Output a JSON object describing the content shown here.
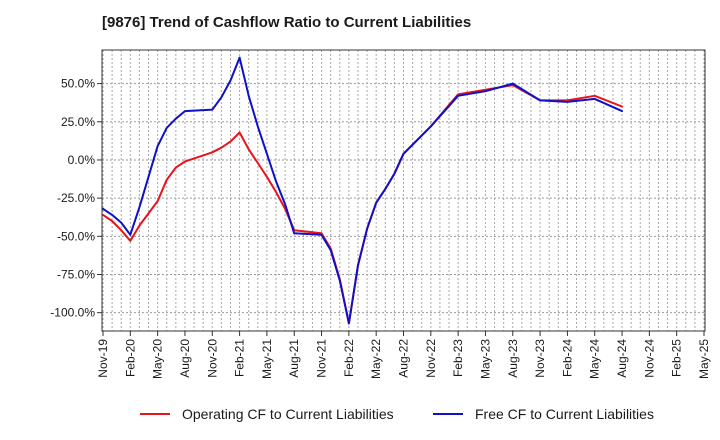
{
  "chart_data": {
    "type": "line",
    "title": "[9876]  Trend of Cashflow Ratio to Current Liabilities",
    "xlabel": "",
    "ylabel": "",
    "ylim": [
      -112,
      72
    ],
    "yticks": [
      50,
      25,
      0,
      -25,
      -50,
      -75,
      -100
    ],
    "ytick_labels": [
      "50.0%",
      "25.0%",
      "0.0%",
      "-25.0%",
      "-50.0%",
      "-75.0%",
      "-100.0%"
    ],
    "xticks": [
      "2019-11",
      "2020-02",
      "2020-05",
      "2020-08",
      "2020-11",
      "2021-02",
      "2021-05",
      "2021-08",
      "2021-11",
      "2022-02",
      "2022-05",
      "2022-08",
      "2022-11",
      "2023-02",
      "2023-05",
      "2023-08",
      "2023-11",
      "2024-02",
      "2024-05",
      "2024-08",
      "2024-11",
      "2025-02",
      "2025-05"
    ],
    "xtick_labels": [
      "Nov-19",
      "Feb-20",
      "May-20",
      "Aug-20",
      "Nov-20",
      "Feb-21",
      "May-21",
      "Aug-21",
      "Nov-21",
      "Feb-22",
      "May-22",
      "Aug-22",
      "Nov-22",
      "Feb-23",
      "May-23",
      "Aug-23",
      "Nov-23",
      "Feb-24",
      "May-24",
      "Aug-24",
      "Nov-24",
      "Feb-25",
      "May-25"
    ],
    "grid": true,
    "legend_position": "bottom",
    "series": [
      {
        "name": "Operating CF to Current Liabilities",
        "color": "#e8141b",
        "points": [
          [
            "2019-11",
            -36
          ],
          [
            "2019-12",
            -40
          ],
          [
            "2020-01",
            -46
          ],
          [
            "2020-02",
            -53
          ],
          [
            "2020-03",
            -43
          ],
          [
            "2020-04",
            -35
          ],
          [
            "2020-05",
            -27
          ],
          [
            "2020-06",
            -13
          ],
          [
            "2020-07",
            -5
          ],
          [
            "2020-08",
            -1
          ],
          [
            "2020-09",
            1
          ],
          [
            "2020-10",
            3
          ],
          [
            "2020-11",
            5
          ],
          [
            "2020-12",
            8
          ],
          [
            "2021-01",
            12
          ],
          [
            "2021-02",
            18
          ],
          [
            "2021-03",
            7
          ],
          [
            "2021-04",
            -2
          ],
          [
            "2021-05",
            -11
          ],
          [
            "2021-06",
            -21
          ],
          [
            "2021-07",
            -32
          ],
          [
            "2021-08",
            -46
          ],
          [
            "2021-11",
            -48
          ],
          [
            "2021-12",
            -58
          ],
          [
            "2022-01",
            -78
          ],
          [
            "2022-02",
            -107
          ],
          [
            "2022-03",
            -69
          ],
          [
            "2022-04",
            -45
          ],
          [
            "2022-05",
            -28
          ],
          [
            "2022-06",
            -19
          ],
          [
            "2022-07",
            -9
          ],
          [
            "2022-08",
            4
          ],
          [
            "2022-11",
            22
          ],
          [
            "2023-02",
            43
          ],
          [
            "2023-05",
            46
          ],
          [
            "2023-08",
            49
          ],
          [
            "2023-11",
            39
          ],
          [
            "2024-02",
            39
          ],
          [
            "2024-05",
            42
          ],
          [
            "2024-08",
            35
          ]
        ]
      },
      {
        "name": "Free CF to Current Liabilities",
        "color": "#1010c8",
        "points": [
          [
            "2019-11",
            -32
          ],
          [
            "2019-12",
            -36
          ],
          [
            "2020-01",
            -41
          ],
          [
            "2020-02",
            -49
          ],
          [
            "2020-03",
            -31
          ],
          [
            "2020-04",
            -11
          ],
          [
            "2020-05",
            9
          ],
          [
            "2020-06",
            21
          ],
          [
            "2020-07",
            27
          ],
          [
            "2020-08",
            32
          ],
          [
            "2020-11",
            33
          ],
          [
            "2020-12",
            41
          ],
          [
            "2021-01",
            52
          ],
          [
            "2021-02",
            67
          ],
          [
            "2021-03",
            42
          ],
          [
            "2021-04",
            22
          ],
          [
            "2021-05",
            4
          ],
          [
            "2021-06",
            -14
          ],
          [
            "2021-07",
            -29
          ],
          [
            "2021-08",
            -48
          ],
          [
            "2021-11",
            -49
          ],
          [
            "2021-12",
            -59
          ],
          [
            "2022-01",
            -79
          ],
          [
            "2022-02",
            -107
          ],
          [
            "2022-03",
            -69
          ],
          [
            "2022-04",
            -45
          ],
          [
            "2022-05",
            -28
          ],
          [
            "2022-06",
            -19
          ],
          [
            "2022-07",
            -9
          ],
          [
            "2022-08",
            4
          ],
          [
            "2022-11",
            22
          ],
          [
            "2023-02",
            42
          ],
          [
            "2023-05",
            45
          ],
          [
            "2023-08",
            50
          ],
          [
            "2023-11",
            39
          ],
          [
            "2024-02",
            38
          ],
          [
            "2024-05",
            40
          ],
          [
            "2024-08",
            32
          ]
        ]
      }
    ]
  }
}
